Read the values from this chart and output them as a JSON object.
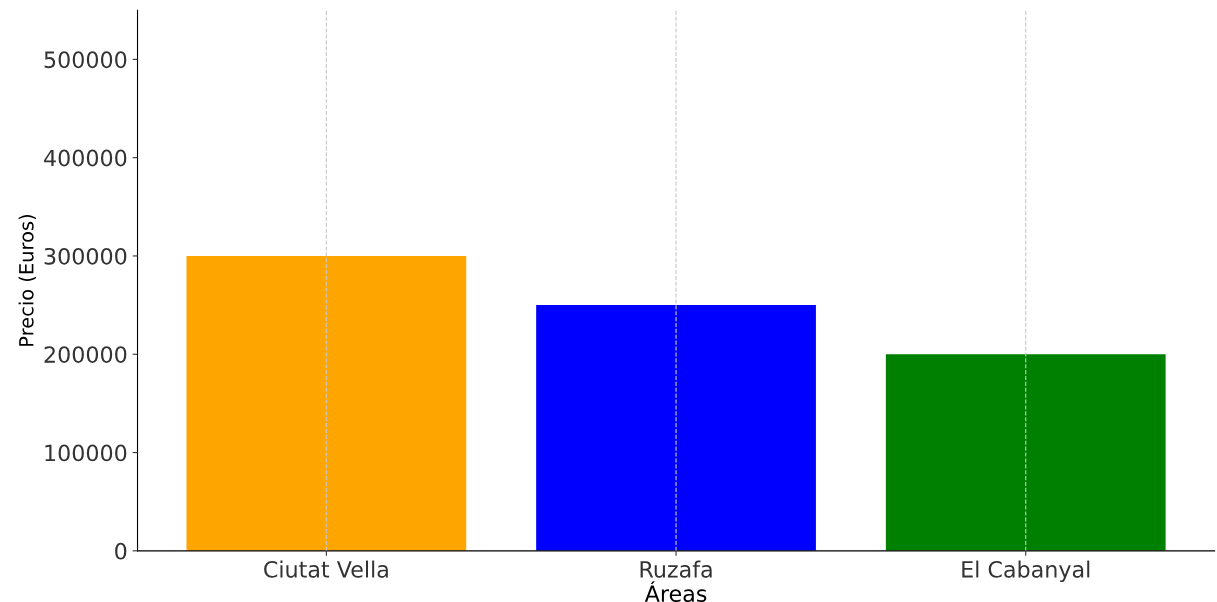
{
  "chart_data": {
    "type": "bar",
    "xlabel": "Áreas",
    "ylabel": "Precio (Euros)",
    "categories": [
      "Ciutat Vella",
      "Ruzafa",
      "El Cabanyal"
    ],
    "values": [
      300000,
      250000,
      200000
    ],
    "colors": [
      "#ffa500",
      "#0000ff",
      "#008000"
    ],
    "ylim": [
      0,
      550000
    ],
    "yticks": [
      0,
      100000,
      200000,
      300000,
      400000,
      500000
    ],
    "grid": "x"
  }
}
